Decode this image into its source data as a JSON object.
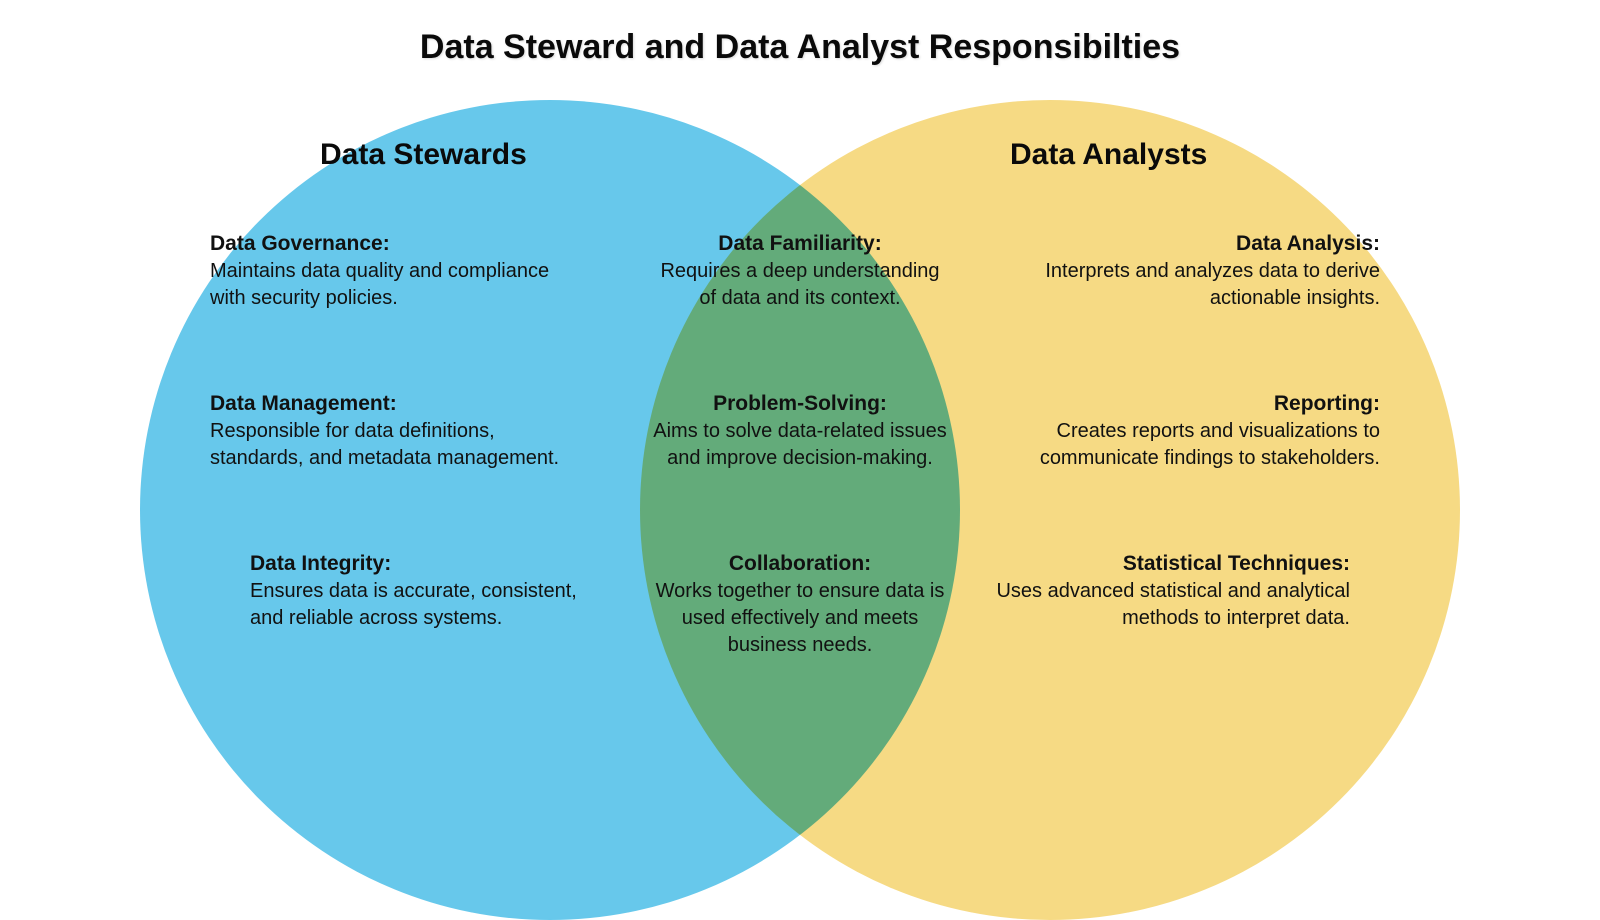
{
  "title": "Data Steward and Data Analyst Responsibilties",
  "title_fontsize": 34,
  "background_color": "#ffffff",
  "text_color": "#111111",
  "venn": {
    "type": "venn",
    "circle_diameter": 820,
    "circle_opacity": 0.92,
    "left_circle_color": "#5ac4ea",
    "right_circle_color": "#f6d77a",
    "overlap_color_hint": "#5aa58f",
    "heading_fontsize": 30,
    "item_label_fontsize": 21,
    "item_desc_fontsize": 20
  },
  "left": {
    "heading": "Data Stewards",
    "items": [
      {
        "label": "Data Governance:",
        "desc": "Maintains data quality and compliance with security policies."
      },
      {
        "label": "Data Management:",
        "desc": "Responsible for data definitions, standards, and metadata management."
      },
      {
        "label": "Data Integrity:",
        "desc": "Ensures data is accurate, consistent, and reliable across systems."
      }
    ]
  },
  "center": {
    "items": [
      {
        "label": "Data Familiarity:",
        "desc": "Requires a deep understanding of data and its context."
      },
      {
        "label": "Problem-Solving:",
        "desc": "Aims to solve data-related issues and improve decision-making."
      },
      {
        "label": "Collaboration:",
        "desc": "Works together to ensure data is used effectively and meets business needs."
      }
    ]
  },
  "right": {
    "heading": "Data Analysts",
    "items": [
      {
        "label": "Data Analysis:",
        "desc": "Interprets and analyzes data to derive actionally insights.",
        "desc_actual": "Interprets and analyzes data to derive actionable insights."
      },
      {
        "label": "Reporting:",
        "desc": "Creates reports and visualizations to communicate findings to stakeholders."
      },
      {
        "label": "Statistical Techniques:",
        "desc": "Uses advanced statistical and analytical methods to interpret data."
      }
    ]
  }
}
